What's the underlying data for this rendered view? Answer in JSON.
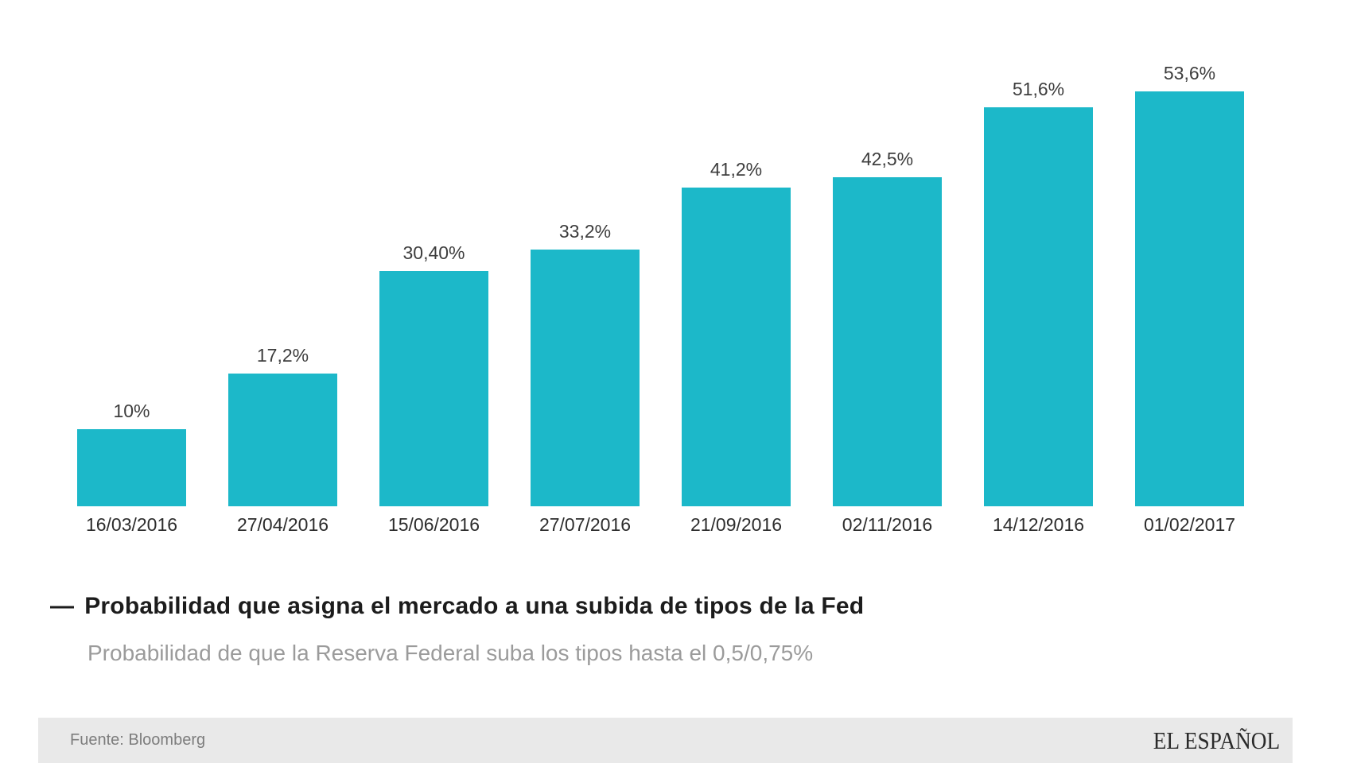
{
  "chart_data": {
    "type": "bar",
    "title": "Probabilidad que asigna el mercado a una subida de tipos de la Fed",
    "subtitle": "Probabilidad de que la Reserva Federal suba los tipos hasta el 0,5/0,75%",
    "categories": [
      "16/03/2016",
      "27/04/2016",
      "15/06/2016",
      "27/07/2016",
      "21/09/2016",
      "02/11/2016",
      "14/12/2016",
      "01/02/2017"
    ],
    "values": [
      10,
      17.2,
      30.4,
      33.2,
      41.2,
      42.5,
      51.6,
      53.6
    ],
    "value_labels": [
      "10%",
      "17,2%",
      "30,40%",
      "33,2%",
      "41,2%",
      "42,5%",
      "51,6%",
      "53,6%"
    ],
    "bar_color": "#1cb8c9",
    "xlabel": "",
    "ylabel": "",
    "ylim": [
      0,
      56
    ],
    "grid": false,
    "legend_position": "below-chart-left"
  },
  "legend": {
    "marker": "—",
    "label": "Probabilidad que asigna el mercado a una subida de tipos de la Fed"
  },
  "footer": {
    "source": "Fuente: Bloomberg",
    "brand": "EL ESPAÑOL",
    "background": "#e9e9e9"
  }
}
